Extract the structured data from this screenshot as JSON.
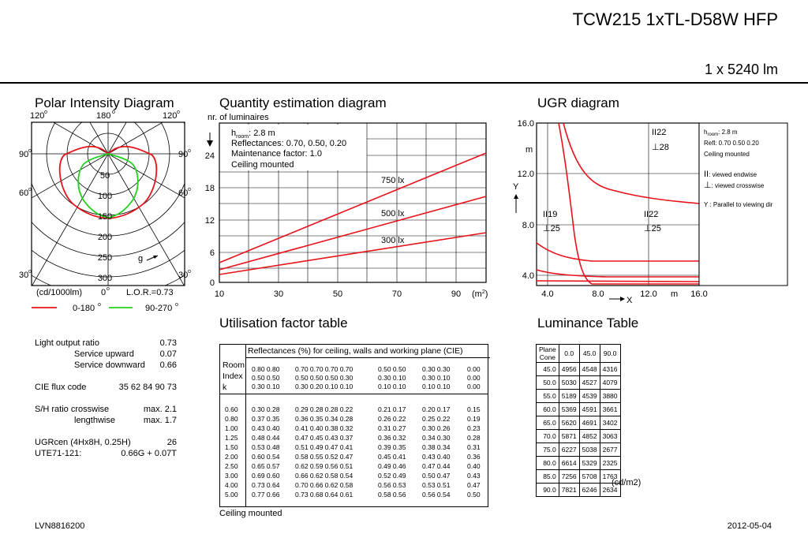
{
  "header": {
    "title": "TCW215 1xTL-D58W HFP",
    "lumens": "1 x 5240 lm"
  },
  "polar": {
    "title": "Polar Intensity Diagram",
    "angle_180": "180",
    "angle_120_left": "120",
    "angle_120_right": "120",
    "angle_90_left": "90",
    "angle_90_right": "90",
    "angle_60_left": "60",
    "angle_60_right": "60",
    "angle_30_left": "30",
    "angle_30_right": "30",
    "angle_0": "0",
    "deg": "o",
    "rings": [
      "50",
      "100",
      "150",
      "200",
      "250",
      "300"
    ],
    "gamma": "g",
    "unit": "(cd/1000lm)",
    "lor": "L.O.R.=0.73",
    "legend_red": "0-180",
    "legend_green": "90-270",
    "color_red": "#e8121b",
    "color_green": "#22d21e"
  },
  "quantity": {
    "title": "Quantity estimation diagram",
    "ylabel": "nr. of luminaires",
    "h_room": "h",
    "h_room_sub": "room",
    "h_room_val": ": 2.8 m",
    "reflectances": "Reflectances: 0.70, 0.50, 0.20",
    "maintenance": "Maintenance factor: 1.0",
    "mounting": "Ceiling mounted",
    "y_ticks": [
      "0",
      "6",
      "12",
      "18",
      "24"
    ],
    "x_ticks": [
      "10",
      "30",
      "50",
      "70",
      "90"
    ],
    "x_unit": "(m",
    "x_unit_sup": "2",
    "x_unit_close": ")",
    "lines": [
      "750 lx",
      "500 lx",
      "300 lx"
    ]
  },
  "ugr": {
    "title": "UGR diagram",
    "y_ticks": [
      "16.0",
      "12.0",
      "8.0",
      "4.0"
    ],
    "y_unit": "m",
    "y_axis": "Y",
    "x_ticks": [
      "4.0",
      "8.0",
      "12.0",
      "16.0"
    ],
    "x_axis": "X",
    "x_unit": "m",
    "labels": {
      "tr_end": "22",
      "tr_cross": "28",
      "ml_end": "19",
      "ml_cross": "25",
      "mr_end": "22",
      "mr_cross": "25"
    },
    "legend": {
      "h_room": "h",
      "h_room_sub": "room",
      "h_room_val": ": 2.8 m",
      "refl": "Refl: 0.70 0.50 0.20",
      "mount": "Ceiling mounted",
      "endwise": ": viewed endwise",
      "crosswise": ": viewed crosswise",
      "parallel": "Y   : Parallel to viewing dir"
    }
  },
  "utilisation": {
    "title": "Utilisation factor table",
    "header": "Reflectances (%) for ceiling, walls and working plane (CIE)",
    "room_index": [
      "Room",
      "Index",
      "k"
    ],
    "refl_groups": [
      [
        "0.80 0.80",
        "0.50 0.50",
        "0.30 0.10"
      ],
      [
        "0.70 0.70 0.70 0.70",
        "0.50 0.50 0.50 0.30",
        "0.30 0.20 0.10 0.10"
      ],
      [
        "0.50 0.50",
        "0.30 0.10",
        "0.10 0.10"
      ],
      [
        "0.30 0.30",
        "0.30 0.10",
        "0.10 0.10"
      ],
      [
        "0.00",
        "0.00",
        "0.00"
      ]
    ],
    "rows": [
      [
        "0.60",
        "0.30 0.28",
        "0.29 0.28 0.28 0.22",
        "0.21 0.17",
        "0.20 0.17",
        "0.15"
      ],
      [
        "0.80",
        "0.37 0.35",
        "0.36 0.35 0.34 0.28",
        "0.26 0.22",
        "0.25 0.22",
        "0.19"
      ],
      [
        "1.00",
        "0.43 0.40",
        "0.41 0.40 0.38 0.32",
        "0.31 0.27",
        "0.30 0.26",
        "0.23"
      ],
      [
        "1.25",
        "0.48 0.44",
        "0.47 0.45 0.43 0.37",
        "0.36 0.32",
        "0.34 0.30",
        "0.28"
      ],
      [
        "1.50",
        "0.53 0.48",
        "0.51 0.49 0.47 0.41",
        "0.39 0.35",
        "0.38 0.34",
        "0.31"
      ],
      [
        "2.00",
        "0.60 0.54",
        "0.58 0.55 0.52 0.47",
        "0.45 0.41",
        "0.43 0.40",
        "0.36"
      ],
      [
        "2.50",
        "0.65 0.57",
        "0.62 0.59 0.56 0.51",
        "0.49 0.46",
        "0.47 0.44",
        "0.40"
      ],
      [
        "3.00",
        "0.69 0.60",
        "0.66 0.62 0.58 0.54",
        "0.52 0.49",
        "0.50 0.47",
        "0.43"
      ],
      [
        "4.00",
        "0.73 0.64",
        "0.70 0.66 0.62 0.58",
        "0.56 0.53",
        "0.53 0.51",
        "0.47"
      ],
      [
        "5.00",
        "0.77 0.66",
        "0.73 0.68 0.64 0.61",
        "0.58 0.56",
        "0.56 0.54",
        "0.50"
      ]
    ],
    "mounting": "Ceiling mounted"
  },
  "luminance": {
    "title": "Luminance Table",
    "head_plane": "Plane",
    "head_cone": "Cone",
    "cols": [
      "0.0",
      "45.0",
      "90.0"
    ],
    "rows": [
      [
        "45.0",
        "4956",
        "4548",
        "4316"
      ],
      [
        "50.0",
        "5030",
        "4527",
        "4079"
      ],
      [
        "55.0",
        "5189",
        "4539",
        "3880"
      ],
      [
        "60.0",
        "5369",
        "4591",
        "3661"
      ],
      [
        "65.0",
        "5620",
        "4691",
        "3402"
      ],
      [
        "70.0",
        "5871",
        "4852",
        "3063"
      ],
      [
        "75.0",
        "6227",
        "5038",
        "2677"
      ],
      [
        "80.0",
        "6614",
        "5329",
        "2325"
      ],
      [
        "85.0",
        "7256",
        "5708",
        "1763"
      ],
      [
        "90.0",
        "7821",
        "6246",
        "2634"
      ]
    ],
    "unit": "(cd/m2)"
  },
  "stats": {
    "lor_label": "Light output ratio",
    "lor_val": "0.73",
    "up_label": "Service upward",
    "up_val": "0.07",
    "down_label": "Service downward",
    "down_val": "0.66",
    "cie_label": "CIE flux code",
    "cie_val": "35 62 84 90 73",
    "sh_label": "S/H ratio crosswise",
    "sh_val": "max. 2.1",
    "len_label": "lengthwise",
    "len_val": "max. 1.7",
    "ugr_label": "UGRcen (4Hx8H, 0.25H)",
    "ugr_val": "26",
    "ute_label": "UTE71-121:",
    "ute_val": "0.66G + 0.07T"
  },
  "footer": {
    "code": "LVN8816200",
    "date": "2012-05-04"
  }
}
